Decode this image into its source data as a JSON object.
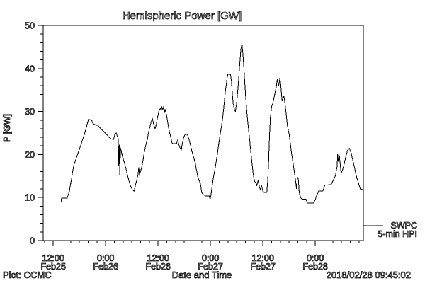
{
  "window": {
    "background": "#ffffff"
  },
  "footer": {
    "plot_credit": "Plot: CCMC",
    "timestamp": "2018/02/28 09:45:02"
  },
  "chart_data": {
    "type": "line",
    "title": "Hemispheric Power [GW]",
    "xlabel": "Date and Time",
    "ylabel": "P [GW]",
    "ylim": [
      0,
      50
    ],
    "y_major_ticks": [
      0,
      10,
      20,
      30,
      40,
      50
    ],
    "y_minor_step": 2,
    "x_range_hours": [
      9.7,
      83.0
    ],
    "x_minor_step_hours": 2,
    "x_major_ticks": [
      {
        "hour": 12,
        "time": "12:00",
        "date": "Feb25"
      },
      {
        "hour": 24,
        "time": "0:00",
        "date": "Feb26"
      },
      {
        "hour": 36,
        "time": "12:00",
        "date": "Feb26"
      },
      {
        "hour": 48,
        "time": "0:00",
        "date": "Feb27"
      },
      {
        "hour": 60,
        "time": "12:00",
        "date": "Feb27"
      },
      {
        "hour": 72,
        "time": "0:00",
        "date": "Feb28"
      }
    ],
    "grid": false,
    "line_color": "#000000",
    "legend": {
      "labels": [
        "SWPC",
        "5-min HPI"
      ],
      "position": "outside-right-bottom"
    },
    "series": [
      {
        "name": "SWPC 5-min HPI",
        "points": [
          [
            9.7,
            9.0
          ],
          [
            13.8,
            9.0
          ],
          [
            13.9,
            9.9
          ],
          [
            15.2,
            9.9
          ],
          [
            15.7,
            11.5
          ],
          [
            16.2,
            14.5
          ],
          [
            16.7,
            17.5
          ],
          [
            17.4,
            19.5
          ],
          [
            18.0,
            21.3
          ],
          [
            18.5,
            22.8
          ],
          [
            19.0,
            24.3
          ],
          [
            19.5,
            26.0
          ],
          [
            19.9,
            27.5
          ],
          [
            20.1,
            28.2
          ],
          [
            20.8,
            28.0
          ],
          [
            21.1,
            27.2
          ],
          [
            21.6,
            26.9
          ],
          [
            22.2,
            26.8
          ],
          [
            22.7,
            26.2
          ],
          [
            23.2,
            25.7
          ],
          [
            23.8,
            25.1
          ],
          [
            24.3,
            24.6
          ],
          [
            24.8,
            24.0
          ],
          [
            25.3,
            23.6
          ],
          [
            25.8,
            23.5
          ],
          [
            26.1,
            24.6
          ],
          [
            26.4,
            25.0
          ],
          [
            26.7,
            24.2
          ],
          [
            26.9,
            23.6
          ],
          [
            27.0,
            17.3
          ],
          [
            27.1,
            22.3
          ],
          [
            27.25,
            15.3
          ],
          [
            27.4,
            21.6
          ],
          [
            27.6,
            20.6
          ],
          [
            27.9,
            19.4
          ],
          [
            28.2,
            18.4
          ],
          [
            28.5,
            17.3
          ],
          [
            28.8,
            16.1
          ],
          [
            29.1,
            14.8
          ],
          [
            29.4,
            13.7
          ],
          [
            29.7,
            12.7
          ],
          [
            30.1,
            11.8
          ],
          [
            30.5,
            11.5
          ],
          [
            30.8,
            12.8
          ],
          [
            31.1,
            14.0
          ],
          [
            31.4,
            15.3
          ],
          [
            31.6,
            17.0
          ],
          [
            31.75,
            15.1
          ],
          [
            32.0,
            16.1
          ],
          [
            32.3,
            17.3
          ],
          [
            32.6,
            18.9
          ],
          [
            32.9,
            20.9
          ],
          [
            33.2,
            22.2
          ],
          [
            33.5,
            23.4
          ],
          [
            33.8,
            25.0
          ],
          [
            34.1,
            26.3
          ],
          [
            34.4,
            27.5
          ],
          [
            34.7,
            28.3
          ],
          [
            35.0,
            27.0
          ],
          [
            35.3,
            26.0
          ],
          [
            35.6,
            27.0
          ],
          [
            35.9,
            28.8
          ],
          [
            36.2,
            30.1
          ],
          [
            36.5,
            30.7
          ],
          [
            36.7,
            30.2
          ],
          [
            36.9,
            31.0
          ],
          [
            37.1,
            30.4
          ],
          [
            37.3,
            31.2
          ],
          [
            37.5,
            29.9
          ],
          [
            37.7,
            30.4
          ],
          [
            38.0,
            28.8
          ],
          [
            38.3,
            26.9
          ],
          [
            38.6,
            25.2
          ],
          [
            38.9,
            24.1
          ],
          [
            39.2,
            22.7
          ],
          [
            39.5,
            22.5
          ],
          [
            40.2,
            22.5
          ],
          [
            40.5,
            23.3
          ],
          [
            40.8,
            22.2
          ],
          [
            41.1,
            21.4
          ],
          [
            41.3,
            21.1
          ],
          [
            41.6,
            22.7
          ],
          [
            41.9,
            24.1
          ],
          [
            42.2,
            24.7
          ],
          [
            42.7,
            24.7
          ],
          [
            43.0,
            23.8
          ],
          [
            43.3,
            22.7
          ],
          [
            43.6,
            21.4
          ],
          [
            43.9,
            20.2
          ],
          [
            44.2,
            19.2
          ],
          [
            44.5,
            18.1
          ],
          [
            44.8,
            16.4
          ],
          [
            45.1,
            14.8
          ],
          [
            45.4,
            14.0
          ],
          [
            45.7,
            13.2
          ],
          [
            46.0,
            11.2
          ],
          [
            46.3,
            10.7
          ],
          [
            46.8,
            10.4
          ],
          [
            47.7,
            10.4
          ],
          [
            47.9,
            9.6
          ],
          [
            48.1,
            10.5
          ],
          [
            48.4,
            12.7
          ],
          [
            48.7,
            14.8
          ],
          [
            49.0,
            16.4
          ],
          [
            49.3,
            18.3
          ],
          [
            49.6,
            20.2
          ],
          [
            49.9,
            22.5
          ],
          [
            50.2,
            24.5
          ],
          [
            50.5,
            26.5
          ],
          [
            50.8,
            28.5
          ],
          [
            51.0,
            30.5
          ],
          [
            51.2,
            32.5
          ],
          [
            51.4,
            34.5
          ],
          [
            51.6,
            36.2
          ],
          [
            51.8,
            37.8
          ],
          [
            52.0,
            38.7
          ],
          [
            52.6,
            38.6
          ],
          [
            52.8,
            37.0
          ],
          [
            53.0,
            34.3
          ],
          [
            53.2,
            31.8
          ],
          [
            53.5,
            30.4
          ],
          [
            53.7,
            30.0
          ],
          [
            54.0,
            32.1
          ],
          [
            54.2,
            34.3
          ],
          [
            54.4,
            36.7
          ],
          [
            54.6,
            39.8
          ],
          [
            54.8,
            42.5
          ],
          [
            55.0,
            44.7
          ],
          [
            55.2,
            45.7
          ],
          [
            55.5,
            42.5
          ],
          [
            55.7,
            39.2
          ],
          [
            55.9,
            35.9
          ],
          [
            56.1,
            32.9
          ],
          [
            56.3,
            30.0
          ],
          [
            56.6,
            27.0
          ],
          [
            56.9,
            24.0
          ],
          [
            57.2,
            21.0
          ],
          [
            57.5,
            18.0
          ],
          [
            57.8,
            15.3
          ],
          [
            58.1,
            13.7
          ],
          [
            58.4,
            13.5
          ],
          [
            58.6,
            12.7
          ],
          [
            58.9,
            14.0
          ],
          [
            59.1,
            12.9
          ],
          [
            59.4,
            11.8
          ],
          [
            59.7,
            12.7
          ],
          [
            60.0,
            11.5
          ],
          [
            60.3,
            11.2
          ],
          [
            60.9,
            11.2
          ],
          [
            61.1,
            14.0
          ],
          [
            61.3,
            18.1
          ],
          [
            61.5,
            24.0
          ],
          [
            61.7,
            28.5
          ],
          [
            62.0,
            31.2
          ],
          [
            62.2,
            31.7
          ],
          [
            62.5,
            32.9
          ],
          [
            62.8,
            34.5
          ],
          [
            63.0,
            35.4
          ],
          [
            63.3,
            37.5
          ],
          [
            63.6,
            35.9
          ],
          [
            63.9,
            37.8
          ],
          [
            64.1,
            36.0
          ],
          [
            64.4,
            32.4
          ],
          [
            64.8,
            33.7
          ],
          [
            65.2,
            30.7
          ],
          [
            65.6,
            26.8
          ],
          [
            66.0,
            24.7
          ],
          [
            66.3,
            22.5
          ],
          [
            66.6,
            20.0
          ],
          [
            67.0,
            17.5
          ],
          [
            67.4,
            14.5
          ],
          [
            67.7,
            12.0
          ],
          [
            67.9,
            14.7
          ],
          [
            68.1,
            14.4
          ],
          [
            68.3,
            11.2
          ],
          [
            68.7,
            9.9
          ],
          [
            69.0,
            9.6
          ],
          [
            69.9,
            9.6
          ],
          [
            70.1,
            8.7
          ],
          [
            71.6,
            8.7
          ],
          [
            72.0,
            9.5
          ],
          [
            72.3,
            10.4
          ],
          [
            72.8,
            11.5
          ],
          [
            73.7,
            11.5
          ],
          [
            74.0,
            12.4
          ],
          [
            74.2,
            12.9
          ],
          [
            75.6,
            13.0
          ],
          [
            76.0,
            13.8
          ],
          [
            76.3,
            14.4
          ],
          [
            76.6,
            15.1
          ],
          [
            77.0,
            17.2
          ],
          [
            77.1,
            20.2
          ],
          [
            77.3,
            18.3
          ],
          [
            77.5,
            19.8
          ],
          [
            77.9,
            15.6
          ],
          [
            78.3,
            16.6
          ],
          [
            78.7,
            18.2
          ],
          [
            79.1,
            20.0
          ],
          [
            79.4,
            21.0
          ],
          [
            79.8,
            21.4
          ],
          [
            80.2,
            20.4
          ],
          [
            80.5,
            19.0
          ],
          [
            80.9,
            17.3
          ],
          [
            81.2,
            15.8
          ],
          [
            81.5,
            14.6
          ],
          [
            82.0,
            13.0
          ],
          [
            82.3,
            12.0
          ],
          [
            83.0,
            11.8
          ]
        ]
      }
    ]
  }
}
